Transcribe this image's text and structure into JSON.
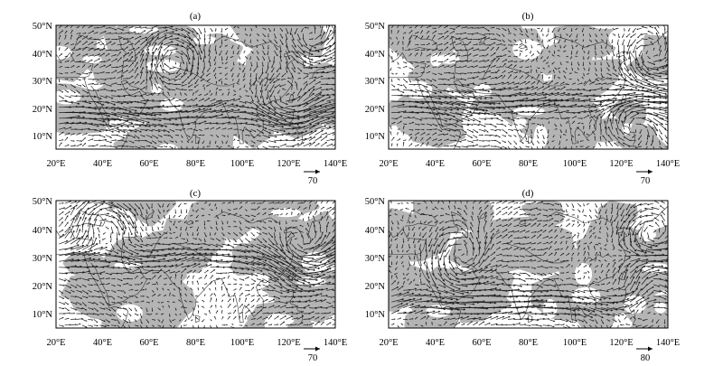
{
  "figure": {
    "panels": [
      {
        "id": "a",
        "title": "(a)",
        "x_ticks": [
          "20°E",
          "40°E",
          "60°E",
          "80°E",
          "100°E",
          "120°E",
          "140°E"
        ],
        "y_ticks": [
          "50°N",
          "40°N",
          "30°N",
          "20°N",
          "10°N"
        ],
        "reference_vector": "70"
      },
      {
        "id": "b",
        "title": "(b)",
        "x_ticks": [
          "20°E",
          "40°E",
          "60°E",
          "80°E",
          "100°E",
          "120°E",
          "140°E"
        ],
        "y_ticks": [
          "50°N",
          "40°N",
          "30°N",
          "20°N",
          "10°N"
        ],
        "reference_vector": "70"
      },
      {
        "id": "c",
        "title": "(c)",
        "x_ticks": [
          "20°E",
          "40°E",
          "60°E",
          "80°E",
          "100°E",
          "120°E",
          "140°E"
        ],
        "y_ticks": [
          "50°N",
          "40°N",
          "30°N",
          "20°N",
          "10°N"
        ],
        "reference_vector": "70"
      },
      {
        "id": "d",
        "title": "(d)",
        "x_ticks": [
          "20°E",
          "40°E",
          "60°E",
          "80°E",
          "100°E",
          "120°E",
          "140°E"
        ],
        "y_ticks": [
          "50°N",
          "40°N",
          "30°N",
          "20°N",
          "10°N"
        ],
        "reference_vector": "80"
      }
    ],
    "colors": {
      "shading": "#b4b4b4",
      "vector": "#1a1a1a",
      "coast": "#333333",
      "frame": "#000000"
    },
    "map_extent": {
      "lon": [
        20,
        140
      ],
      "lat": [
        5,
        50
      ]
    }
  }
}
